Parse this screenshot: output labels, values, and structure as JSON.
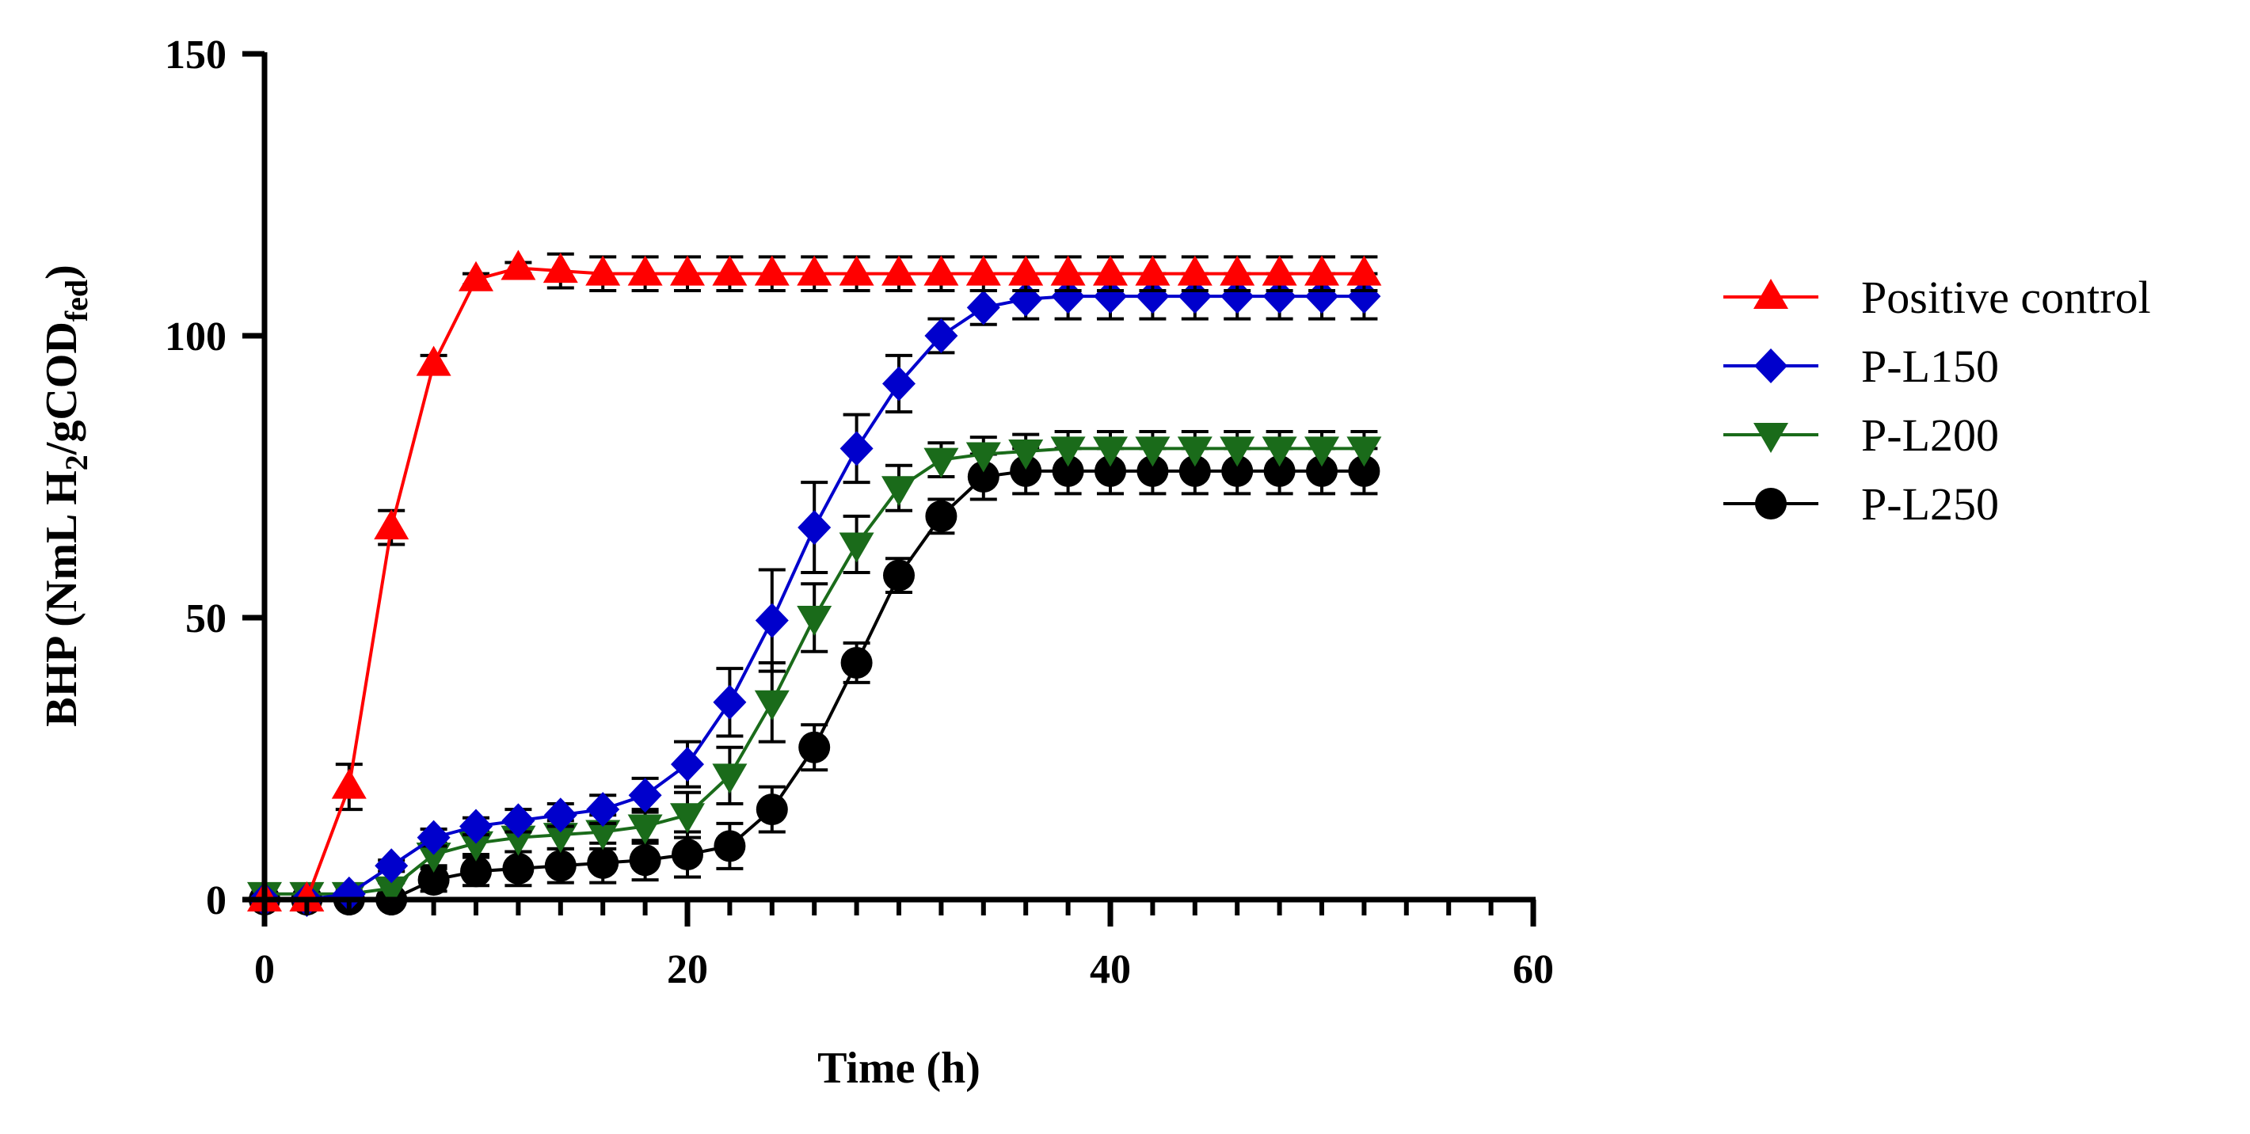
{
  "chart_data": {
    "type": "line",
    "title": "",
    "xlabel": "Time (h)",
    "ylabel": {
      "main": "BHP (NmL H",
      "sub1": "2",
      "mid": "/gCOD",
      "sub2": "fed",
      "end": ")"
    },
    "xlim": [
      0,
      60
    ],
    "ylim": [
      0,
      150
    ],
    "xticks": [
      0,
      20,
      40,
      60
    ],
    "xtick_labels": [
      "0",
      "20",
      "40",
      "60"
    ],
    "yticks": [
      0,
      50,
      100,
      150
    ],
    "ytick_labels": [
      "0",
      "50",
      "100",
      "150"
    ],
    "x_minor_step": 2,
    "x": [
      0,
      2,
      4,
      6,
      8,
      10,
      12,
      14,
      16,
      18,
      20,
      22,
      24,
      26,
      28,
      30,
      32,
      34,
      36,
      38,
      40,
      42,
      44,
      46,
      48,
      50,
      52
    ],
    "series": [
      {
        "name": "Positive control",
        "color": "#ff0000",
        "marker": "triangle-up",
        "values": [
          0,
          0,
          20,
          66,
          95,
          110,
          112,
          111.5,
          111,
          111,
          111,
          111,
          111,
          111,
          111,
          111,
          111,
          111,
          111,
          111,
          111,
          111,
          111,
          111,
          111,
          111,
          111
        ],
        "errors": [
          0,
          0,
          4,
          3,
          1.5,
          1,
          1,
          3,
          3,
          3,
          3,
          3,
          3,
          3,
          3,
          3,
          3,
          3,
          3,
          3,
          3,
          3,
          3,
          3,
          3,
          3,
          3
        ]
      },
      {
        "name": "P-L150",
        "color": "#0000cc",
        "marker": "diamond",
        "values": [
          0,
          0,
          1,
          6,
          11,
          13,
          14,
          15,
          16,
          18.5,
          24,
          35,
          49.5,
          66,
          80,
          91.5,
          100,
          105,
          106.5,
          107,
          107,
          107,
          107,
          107,
          107,
          107,
          107
        ],
        "errors": [
          0,
          0,
          0.5,
          1,
          1.5,
          1.5,
          2,
          2,
          2.5,
          3,
          4,
          6,
          9,
          8,
          6,
          5,
          3,
          3,
          3.5,
          4,
          4,
          4,
          4,
          4,
          4,
          4,
          4
        ]
      },
      {
        "name": "P-L200",
        "color": "#1a6b1a",
        "marker": "triangle-down",
        "values": [
          1,
          1,
          1,
          2,
          8,
          10,
          11,
          11.5,
          12,
          13,
          15,
          22,
          35,
          50,
          63,
          73,
          78,
          79,
          79.5,
          80,
          80,
          80,
          80,
          80,
          80,
          80,
          80
        ],
        "errors": [
          0,
          0,
          0.5,
          1,
          2,
          2,
          2.5,
          2.5,
          3,
          3,
          4,
          5,
          7,
          6,
          5,
          4,
          3,
          3,
          3,
          3,
          3,
          3,
          3,
          3,
          3,
          3,
          3
        ]
      },
      {
        "name": "P-L250",
        "color": "#000000",
        "marker": "circle",
        "values": [
          0,
          0,
          0,
          0,
          3.5,
          5,
          5.5,
          6,
          6.5,
          7,
          8,
          9.5,
          16,
          27,
          42,
          57.5,
          68,
          75,
          76,
          76,
          76,
          76,
          76,
          76,
          76,
          76,
          76
        ],
        "errors": [
          0,
          0,
          0,
          0.5,
          2,
          2.5,
          3,
          3,
          3.5,
          3.5,
          4,
          4,
          4,
          4,
          3.5,
          3,
          3,
          4,
          4,
          4,
          4,
          4,
          4,
          4,
          4,
          4,
          4
        ]
      }
    ],
    "legend": {
      "position": "right",
      "entries": [
        "Positive control",
        "P-L150",
        "P-L200",
        "P-L250"
      ]
    }
  }
}
